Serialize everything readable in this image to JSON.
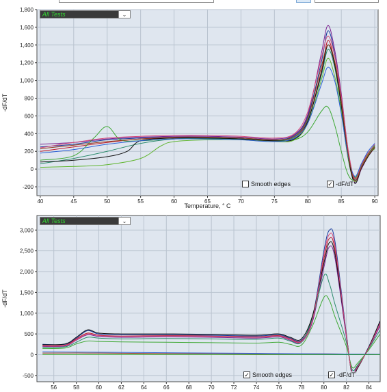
{
  "charts": [
    {
      "test_selector": {
        "value": "All Tests"
      },
      "y_axis_label": "-dF/dT",
      "x_axis_label": "Temperature, ° C",
      "x_ticks": [
        "40",
        "45",
        "50",
        "55",
        "60",
        "65",
        "70",
        "75",
        "80",
        "85",
        "90"
      ],
      "y_ticks": [
        "-200",
        "0",
        "200",
        "400",
        "600",
        "800",
        "1,000",
        "1,200",
        "1,400",
        "1,600",
        "1,800"
      ],
      "smooth_edges": {
        "label": "Smooth edges",
        "checked": false
      },
      "derivative": {
        "label": "-dF/dT",
        "checked": true
      }
    },
    {
      "test_selector": {
        "value": "All Tests"
      },
      "y_axis_label": "-dF/dT",
      "x_axis_label": "",
      "x_ticks": [
        "56",
        "58",
        "60",
        "62",
        "64",
        "66",
        "68",
        "70",
        "72",
        "74",
        "76",
        "78",
        "80",
        "82",
        "84"
      ],
      "y_ticks": [
        "-500",
        "0",
        "500",
        "1,000",
        "1,500",
        "2,000",
        "2,500",
        "3,000"
      ],
      "smooth_edges": {
        "label": "Smooth edges",
        "checked": true
      },
      "derivative": {
        "label": "-dF/dT",
        "checked": true
      }
    }
  ],
  "chart_data": [
    {
      "type": "line",
      "title": "",
      "xlabel": "Temperature, ° C",
      "ylabel": "-dF/dT",
      "xlim": [
        39.5,
        90.5
      ],
      "ylim": [
        -300,
        1800
      ],
      "grid": true,
      "series_count_approx": 40,
      "series": [
        {
          "x": [
            40,
            45,
            50,
            55,
            60,
            65,
            70,
            75,
            78,
            80,
            82,
            83,
            84,
            85,
            86,
            87,
            88,
            89,
            90
          ],
          "y": [
            250,
            280,
            330,
            350,
            360,
            360,
            350,
            330,
            380,
            600,
            1200,
            1560,
            1300,
            800,
            200,
            -120,
            20,
            150,
            250
          ],
          "color": "#1a3a9c"
        },
        {
          "x": [
            40,
            45,
            50,
            55,
            60,
            65,
            70,
            75,
            78,
            80,
            82,
            83,
            84,
            85,
            86,
            87,
            88,
            89,
            90
          ],
          "y": [
            200,
            250,
            300,
            340,
            350,
            350,
            340,
            320,
            360,
            550,
            1100,
            1450,
            1200,
            700,
            150,
            -100,
            40,
            170,
            260
          ],
          "color": "#c0182a"
        },
        {
          "x": [
            40,
            45,
            50,
            55,
            60,
            65,
            70,
            75,
            78,
            80,
            82,
            83,
            84,
            85,
            86,
            87,
            88,
            89,
            90
          ],
          "y": [
            280,
            300,
            340,
            360,
            370,
            370,
            360,
            340,
            390,
            620,
            1300,
            1620,
            1350,
            850,
            220,
            -150,
            0,
            140,
            240
          ],
          "color": "#7a1f8f"
        },
        {
          "x": [
            40,
            45,
            50,
            55,
            60,
            65,
            70,
            75,
            78,
            80,
            82,
            83,
            84,
            85,
            86,
            87,
            88,
            89,
            90
          ],
          "y": [
            60,
            120,
            200,
            290,
            340,
            345,
            340,
            320,
            360,
            560,
            1050,
            1350,
            1150,
            700,
            160,
            -90,
            30,
            160,
            270
          ],
          "color": "#2a8a6a"
        },
        {
          "x": [
            40,
            45,
            48,
            50,
            52,
            55,
            60,
            65,
            70,
            75,
            78,
            80,
            82,
            83,
            84,
            85,
            86,
            87,
            88,
            89,
            90
          ],
          "y": [
            100,
            150,
            350,
            480,
            330,
            320,
            340,
            350,
            340,
            320,
            330,
            420,
            650,
            700,
            500,
            200,
            -60,
            -120,
            60,
            180,
            260
          ],
          "color": "#3da833"
        },
        {
          "x": [
            40,
            45,
            50,
            55,
            58,
            60,
            65,
            70,
            75,
            78,
            80,
            82,
            83,
            84,
            85,
            86,
            87,
            88,
            89,
            90
          ],
          "y": [
            20,
            30,
            50,
            120,
            260,
            310,
            330,
            330,
            310,
            330,
            520,
            1000,
            1250,
            1050,
            650,
            120,
            -140,
            20,
            160,
            230
          ],
          "color": "#5fb52e"
        },
        {
          "x": [
            40,
            45,
            50,
            53,
            55,
            60,
            65,
            70,
            75,
            78,
            80,
            82,
            83,
            84,
            85,
            86,
            87,
            88,
            89,
            90
          ],
          "y": [
            80,
            100,
            140,
            200,
            320,
            350,
            350,
            340,
            320,
            340,
            540,
            1080,
            1400,
            1180,
            720,
            150,
            -160,
            10,
            140,
            250
          ],
          "color": "#111111"
        },
        {
          "x": [
            40,
            45,
            50,
            55,
            60,
            65,
            70,
            75,
            78,
            80,
            82,
            83,
            84,
            85,
            86,
            87,
            88,
            89,
            90
          ],
          "y": [
            240,
            300,
            350,
            370,
            380,
            380,
            370,
            350,
            400,
            650,
            1250,
            1500,
            1280,
            820,
            230,
            -110,
            50,
            180,
            280
          ],
          "color": "#d64b7a"
        },
        {
          "x": [
            40,
            45,
            50,
            55,
            60,
            65,
            70,
            75,
            78,
            80,
            82,
            83,
            84,
            85,
            86,
            87,
            88,
            89,
            90
          ],
          "y": [
            180,
            220,
            280,
            320,
            340,
            340,
            330,
            310,
            350,
            520,
            950,
            1150,
            1000,
            620,
            150,
            -80,
            60,
            200,
            290
          ],
          "color": "#2b5fd6"
        },
        {
          "x": [
            40,
            45,
            50,
            55,
            60,
            65,
            70,
            75,
            78,
            80,
            82,
            83,
            84,
            85,
            86,
            87,
            88,
            89,
            90
          ],
          "y": [
            230,
            270,
            310,
            340,
            360,
            360,
            350,
            330,
            370,
            580,
            1150,
            1400,
            1220,
            760,
            180,
            -130,
            20,
            150,
            250
          ],
          "color": "#8e3a1c"
        }
      ]
    },
    {
      "type": "line",
      "title": "",
      "xlabel": "",
      "ylabel": "-dF/dT",
      "xlim": [
        54.5,
        85
      ],
      "ylim": [
        -650,
        3350
      ],
      "grid": true,
      "series_count_approx": 40,
      "series": [
        {
          "x": [
            55,
            57,
            58,
            59,
            60,
            62,
            66,
            70,
            74,
            76,
            77,
            78,
            79,
            80,
            80.5,
            81,
            82,
            82.5,
            83,
            84,
            85
          ],
          "y": [
            250,
            250,
            400,
            580,
            500,
            480,
            480,
            470,
            450,
            480,
            400,
            350,
            900,
            2500,
            3000,
            2700,
            500,
            -450,
            -300,
            200,
            800
          ],
          "color": "#1a3a9c"
        },
        {
          "x": [
            55,
            57,
            58,
            59,
            60,
            62,
            66,
            70,
            74,
            76,
            77,
            78,
            79,
            80,
            80.5,
            81,
            82,
            82.5,
            83,
            84,
            85
          ],
          "y": [
            220,
            230,
            380,
            520,
            470,
            450,
            460,
            450,
            430,
            460,
            380,
            330,
            850,
            2300,
            2800,
            2500,
            450,
            -420,
            -280,
            180,
            750
          ],
          "color": "#c0182a"
        },
        {
          "x": [
            55,
            57,
            58,
            59,
            60,
            62,
            66,
            70,
            74,
            76,
            77,
            78,
            79,
            80,
            80.5,
            81,
            82,
            82.5,
            83,
            84,
            85
          ],
          "y": [
            200,
            210,
            350,
            480,
            440,
            420,
            430,
            420,
            400,
            430,
            350,
            300,
            800,
            2100,
            2600,
            2300,
            420,
            -400,
            -260,
            160,
            700
          ],
          "color": "#7a1f8f"
        },
        {
          "x": [
            55,
            57,
            58,
            59,
            60,
            62,
            66,
            70,
            74,
            76,
            77,
            78,
            79,
            80,
            80.5,
            81,
            82,
            82.5,
            83,
            84,
            85
          ],
          "y": [
            180,
            190,
            300,
            420,
            400,
            380,
            390,
            380,
            370,
            400,
            330,
            300,
            900,
            1900,
            1700,
            1200,
            300,
            -350,
            -250,
            150,
            600
          ],
          "color": "#2a8a6a"
        },
        {
          "x": [
            55,
            57,
            58,
            59,
            60,
            62,
            66,
            70,
            74,
            76,
            77,
            78,
            79,
            80,
            80.5,
            81,
            82,
            82.5,
            83,
            84,
            85
          ],
          "y": [
            150,
            160,
            260,
            330,
            320,
            310,
            300,
            290,
            280,
            300,
            250,
            230,
            700,
            1380,
            1300,
            900,
            200,
            -300,
            -200,
            120,
            500
          ],
          "color": "#3da833"
        },
        {
          "x": [
            55,
            57,
            58,
            59,
            60,
            62,
            66,
            70,
            74,
            76,
            77,
            78,
            79,
            80,
            80.5,
            81,
            82,
            82.5,
            83,
            84,
            85
          ],
          "y": [
            240,
            260,
            420,
            600,
            520,
            500,
            500,
            490,
            470,
            500,
            420,
            380,
            950,
            2200,
            2700,
            2400,
            480,
            -480,
            -320,
            190,
            820
          ],
          "color": "#111111"
        },
        {
          "x": [
            55,
            57,
            58,
            59,
            60,
            62,
            66,
            70,
            74,
            76,
            77,
            78,
            79,
            80,
            80.5,
            81,
            82,
            82.5,
            83,
            84,
            85
          ],
          "y": [
            210,
            220,
            360,
            500,
            460,
            440,
            450,
            440,
            420,
            450,
            370,
            320,
            850,
            2400,
            2900,
            2600,
            460,
            -430,
            -290,
            170,
            760
          ],
          "color": "#d64b7a"
        },
        {
          "x": [
            55,
            60,
            65,
            70,
            75,
            80,
            85
          ],
          "y": [
            40,
            40,
            30,
            30,
            20,
            20,
            10
          ],
          "color": "#8e3a1c"
        },
        {
          "x": [
            55,
            60,
            65,
            70,
            75,
            80,
            85
          ],
          "y": [
            70,
            60,
            50,
            40,
            30,
            20,
            10
          ],
          "color": "#2b5fd6"
        },
        {
          "x": [
            55,
            60,
            65,
            70,
            75,
            80,
            85
          ],
          "y": [
            0,
            0,
            0,
            0,
            0,
            0,
            0
          ],
          "color": "#3da833"
        }
      ]
    }
  ]
}
